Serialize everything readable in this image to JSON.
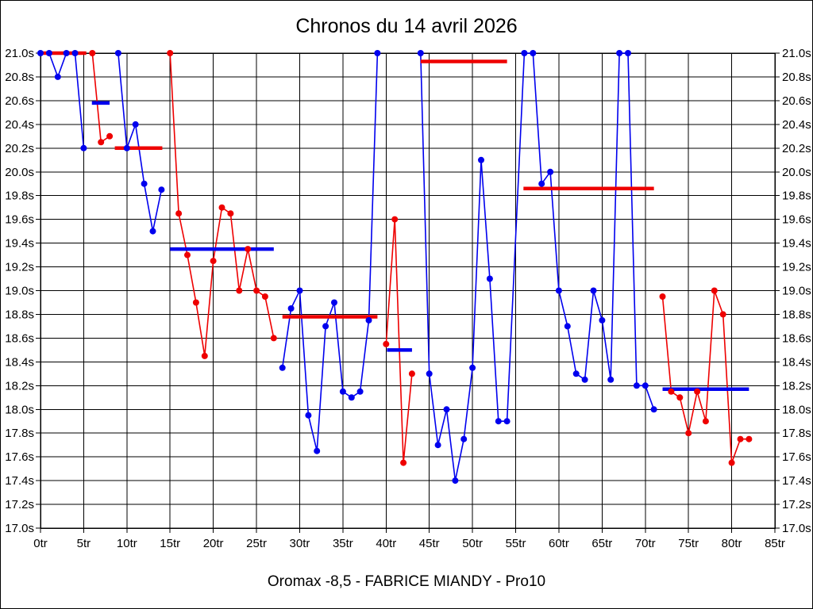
{
  "title": "Chronos du 14 avril 2026",
  "footer": "Oromax -8,5 - FABRICE MIANDY - Pro10",
  "colors": {
    "blue": "#0000ee",
    "red": "#ee0000",
    "grid": "#000000",
    "background": "#ffffff",
    "text": "#000000"
  },
  "chart_data": {
    "type": "line",
    "title": "Chronos du 14 avril 2026",
    "subtitle": "Oromax -8,5 - FABRICE MIANDY - Pro10",
    "x_axis": {
      "min": 0,
      "max": 85,
      "tick_step": 5,
      "suffix": "tr"
    },
    "y_axis": {
      "min": 17.0,
      "max": 21.0,
      "tick_step": 0.2,
      "suffix": "s"
    },
    "grid": true,
    "x_ticks": [
      "0tr",
      "5tr",
      "10tr",
      "15tr",
      "20tr",
      "25tr",
      "30tr",
      "35tr",
      "40tr",
      "45tr",
      "50tr",
      "55tr",
      "60tr",
      "65tr",
      "70tr",
      "75tr",
      "80tr",
      "85tr"
    ],
    "y_ticks": [
      "21.0s",
      "20.8s",
      "20.6s",
      "20.4s",
      "20.2s",
      "20.0s",
      "19.8s",
      "19.6s",
      "19.4s",
      "19.2s",
      "19.0s",
      "18.8s",
      "18.6s",
      "18.4s",
      "18.2s",
      "18.0s",
      "17.8s",
      "17.6s",
      "17.4s",
      "17.2s",
      "17.0s"
    ],
    "series": [
      {
        "name": "stint-1",
        "color": "blue",
        "points": [
          [
            0,
            21.0
          ],
          [
            1,
            21.0
          ],
          [
            2,
            20.8
          ],
          [
            3,
            21.0
          ],
          [
            4,
            21.0
          ],
          [
            5,
            20.2
          ]
        ]
      },
      {
        "name": "stint-2",
        "color": "red",
        "points": [
          [
            6,
            21.0
          ],
          [
            7,
            20.25
          ],
          [
            8,
            20.3
          ]
        ]
      },
      {
        "name": "stint-3",
        "color": "blue",
        "points": [
          [
            9,
            21.0
          ],
          [
            10,
            20.2
          ],
          [
            11,
            20.4
          ],
          [
            12,
            19.9
          ],
          [
            13,
            19.5
          ],
          [
            14,
            19.85
          ]
        ]
      },
      {
        "name": "stint-4",
        "color": "red",
        "points": [
          [
            15,
            21.0
          ],
          [
            16,
            19.65
          ],
          [
            17,
            19.3
          ],
          [
            18,
            18.9
          ],
          [
            19,
            18.45
          ],
          [
            20,
            19.25
          ],
          [
            21,
            19.7
          ],
          [
            22,
            19.65
          ],
          [
            23,
            19.0
          ],
          [
            24,
            19.35
          ],
          [
            25,
            19.0
          ],
          [
            26,
            18.95
          ],
          [
            27,
            18.6
          ]
        ]
      },
      {
        "name": "stint-5",
        "color": "blue",
        "points": [
          [
            28,
            18.35
          ],
          [
            29,
            18.85
          ],
          [
            30,
            19.0
          ],
          [
            31,
            17.95
          ],
          [
            32,
            17.65
          ],
          [
            33,
            18.7
          ],
          [
            34,
            18.9
          ],
          [
            35,
            18.15
          ],
          [
            36,
            18.1
          ],
          [
            37,
            18.15
          ],
          [
            38,
            18.75
          ],
          [
            39,
            21.0
          ]
        ]
      },
      {
        "name": "stint-6",
        "color": "red",
        "points": [
          [
            40,
            18.55
          ],
          [
            41,
            19.6
          ],
          [
            42,
            17.55
          ],
          [
            43,
            18.3
          ]
        ]
      },
      {
        "name": "stint-7",
        "color": "blue",
        "points": [
          [
            44,
            21.0
          ],
          [
            45,
            18.3
          ],
          [
            46,
            17.7
          ],
          [
            47,
            18.0
          ],
          [
            48,
            17.4
          ],
          [
            49,
            17.75
          ],
          [
            50,
            18.35
          ],
          [
            51,
            20.1
          ],
          [
            52,
            19.1
          ],
          [
            53,
            17.9
          ],
          [
            54,
            17.9
          ],
          [
            56,
            21.0
          ],
          [
            57,
            21.0
          ],
          [
            58,
            19.9
          ],
          [
            59,
            20.0
          ],
          [
            60,
            19.0
          ],
          [
            61,
            18.7
          ],
          [
            62,
            18.3
          ],
          [
            63,
            18.25
          ],
          [
            64,
            19.0
          ],
          [
            65,
            18.75
          ],
          [
            66,
            18.25
          ],
          [
            67,
            21.0
          ],
          [
            68,
            21.0
          ],
          [
            69,
            18.2
          ],
          [
            70,
            18.2
          ],
          [
            71,
            18.0
          ]
        ]
      },
      {
        "name": "stint-8",
        "color": "red",
        "points": [
          [
            72,
            18.95
          ],
          [
            73,
            18.15
          ],
          [
            74,
            18.1
          ],
          [
            75,
            17.8
          ],
          [
            76,
            18.15
          ],
          [
            77,
            17.9
          ],
          [
            78,
            19.0
          ],
          [
            79,
            18.8
          ],
          [
            80,
            17.55
          ],
          [
            81,
            17.75
          ],
          [
            82,
            17.75
          ]
        ]
      }
    ],
    "average_segments": [
      {
        "color": "red",
        "from": 0.0,
        "to": 5.3,
        "value": 21.0
      },
      {
        "color": "blue",
        "from": 5.95,
        "to": 8.0,
        "value": 20.58
      },
      {
        "color": "red",
        "from": 8.6,
        "to": 14.1,
        "value": 20.2
      },
      {
        "color": "blue",
        "from": 15.0,
        "to": 27.0,
        "value": 19.35
      },
      {
        "color": "red",
        "from": 28.0,
        "to": 39.0,
        "value": 18.78
      },
      {
        "color": "blue",
        "from": 40.1,
        "to": 43.0,
        "value": 18.5
      },
      {
        "color": "red",
        "from": 44.0,
        "to": 54.0,
        "value": 20.93
      },
      {
        "color": "red",
        "from": 55.9,
        "to": 71.0,
        "value": 19.86
      },
      {
        "color": "blue",
        "from": 72.0,
        "to": 82.0,
        "value": 18.17
      }
    ]
  }
}
